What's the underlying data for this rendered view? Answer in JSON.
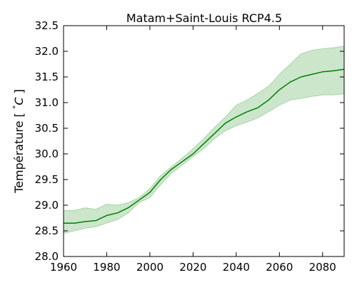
{
  "chart_data": {
    "type": "line",
    "title": "Matam+Saint-Louis RCP4.5",
    "xlabel": "",
    "ylabel": "Température [ ° C ]",
    "ylabel_parts": {
      "prefix": "Température [ ",
      "degree": "°",
      "unit": "C",
      "suffix": " ]"
    },
    "xlim": [
      1960,
      2090
    ],
    "ylim": [
      28.0,
      32.5
    ],
    "xticks": [
      1960,
      1980,
      2000,
      2020,
      2040,
      2060,
      2080
    ],
    "xtick_labels": [
      "1960",
      "1980",
      "2000",
      "2020",
      "2040",
      "2060",
      "2080"
    ],
    "yticks": [
      28.0,
      28.5,
      29.0,
      29.5,
      30.0,
      30.5,
      31.0,
      31.5,
      32.0,
      32.5
    ],
    "ytick_labels": [
      "28.0",
      "28.5",
      "29.0",
      "29.5",
      "30.0",
      "30.5",
      "31.0",
      "31.5",
      "32.0",
      "32.5"
    ],
    "grid": false,
    "colors": {
      "line": "#008000",
      "band": "#008000"
    },
    "series": [
      {
        "x": [
          1960,
          1965,
          1970,
          1975,
          1980,
          1985,
          1990,
          1995,
          2000,
          2005,
          2010,
          2015,
          2020,
          2025,
          2030,
          2035,
          2040,
          2045,
          2050,
          2055,
          2060,
          2065,
          2070,
          2075,
          2080,
          2085,
          2090
        ],
        "mean": [
          28.65,
          28.65,
          28.68,
          28.7,
          28.8,
          28.85,
          28.95,
          29.1,
          29.25,
          29.5,
          29.7,
          29.85,
          30.0,
          30.2,
          30.4,
          30.6,
          30.72,
          30.82,
          30.9,
          31.05,
          31.25,
          31.4,
          31.5,
          31.55,
          31.6,
          31.62,
          31.65
        ],
        "lower": [
          28.45,
          28.5,
          28.55,
          28.58,
          28.65,
          28.72,
          28.85,
          29.05,
          29.15,
          29.4,
          29.62,
          29.78,
          29.95,
          30.1,
          30.3,
          30.45,
          30.55,
          30.62,
          30.7,
          30.82,
          30.95,
          31.05,
          31.08,
          31.12,
          31.15,
          31.15,
          31.17
        ],
        "upper": [
          28.9,
          28.9,
          28.95,
          28.92,
          29.02,
          29.0,
          29.05,
          29.15,
          29.32,
          29.58,
          29.75,
          29.92,
          30.1,
          30.3,
          30.52,
          30.72,
          30.95,
          31.05,
          31.18,
          31.32,
          31.55,
          31.75,
          31.95,
          32.02,
          32.05,
          32.07,
          32.1
        ]
      }
    ]
  }
}
